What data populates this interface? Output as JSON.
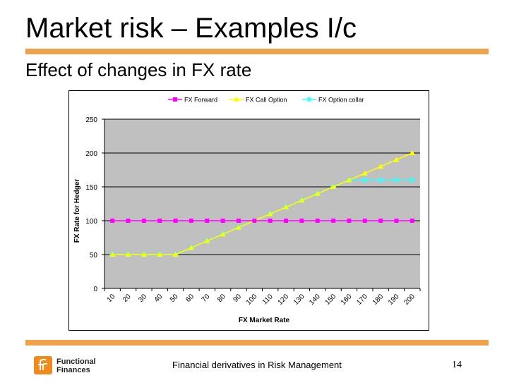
{
  "slide": {
    "title": "Market risk – Examples I/c",
    "subtitle": "Effect of changes in FX rate",
    "footer": "Financial derivatives in Risk Management",
    "page_number": "14",
    "logo_line1": "Functional",
    "logo_line2": "Finances",
    "accent_color": "#f0a24a",
    "logo_color": "#f08a1c"
  },
  "chart_data": {
    "type": "line",
    "title": "",
    "xlabel": "FX Market Rate",
    "ylabel": "FX Rate for Hedger",
    "categories": [
      "10",
      "20",
      "30",
      "40",
      "50",
      "60",
      "70",
      "80",
      "90",
      "100",
      "110",
      "120",
      "130",
      "140",
      "150",
      "160",
      "170",
      "180",
      "190",
      "200"
    ],
    "ylim": [
      0,
      250
    ],
    "yticks": [
      0,
      50,
      100,
      150,
      200,
      250
    ],
    "grid": true,
    "legend_position": "top",
    "series": [
      {
        "name": "FX Forward",
        "color": "#ff00ff",
        "marker": "square",
        "values": [
          100,
          100,
          100,
          100,
          100,
          100,
          100,
          100,
          100,
          100,
          100,
          100,
          100,
          100,
          100,
          100,
          100,
          100,
          100,
          100
        ]
      },
      {
        "name": "FX Call Option",
        "color": "#ffff00",
        "marker": "triangle",
        "values": [
          50,
          50,
          50,
          50,
          50,
          60,
          70,
          80,
          90,
          100,
          110,
          120,
          130,
          140,
          150,
          160,
          170,
          180,
          190,
          200
        ]
      },
      {
        "name": "FX Option collar",
        "color": "#33ffff",
        "marker": "star",
        "values": [
          50,
          50,
          50,
          50,
          50,
          60,
          70,
          80,
          90,
          100,
          110,
          120,
          130,
          140,
          150,
          160,
          160,
          160,
          160,
          160
        ]
      }
    ]
  }
}
